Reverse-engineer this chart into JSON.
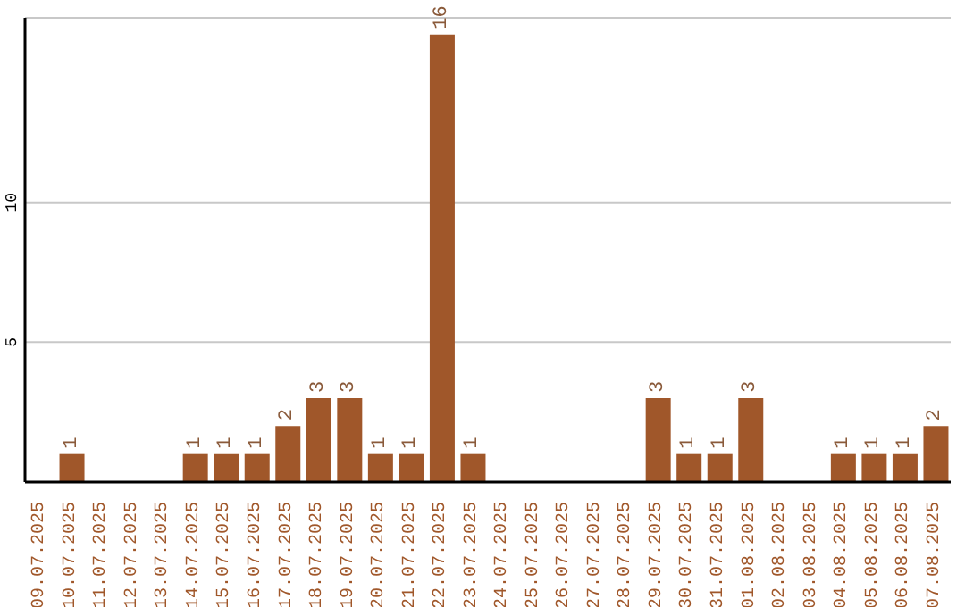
{
  "chart_data": {
    "type": "bar",
    "categories": [
      "09.07.2025",
      "10.07.2025",
      "11.07.2025",
      "12.07.2025",
      "13.07.2025",
      "14.07.2025",
      "15.07.2025",
      "16.07.2025",
      "17.07.2025",
      "18.07.2025",
      "19.07.2025",
      "20.07.2025",
      "21.07.2025",
      "22.07.2025",
      "23.07.2025",
      "24.07.2025",
      "25.07.2025",
      "26.07.2025",
      "27.07.2025",
      "28.07.2025",
      "29.07.2025",
      "30.07.2025",
      "31.07.2025",
      "01.08.2025",
      "02.08.2025",
      "03.08.2025",
      "04.08.2025",
      "05.08.2025",
      "06.08.2025",
      "07.08.2025"
    ],
    "values": [
      0,
      1,
      0,
      0,
      0,
      1,
      1,
      1,
      2,
      3,
      3,
      1,
      1,
      16,
      1,
      0,
      0,
      0,
      0,
      0,
      3,
      1,
      1,
      3,
      0,
      0,
      1,
      1,
      1,
      2
    ],
    "value_labels": [
      null,
      "1",
      null,
      null,
      null,
      "1",
      "1",
      "1",
      "2",
      "3",
      "3",
      "1",
      "1",
      "16",
      "1",
      null,
      null,
      null,
      null,
      null,
      "3",
      "1",
      "1",
      "3",
      null,
      null,
      "1",
      "1",
      "1",
      "2"
    ],
    "color": "#a0572a",
    "ylim": [
      0,
      16.6
    ],
    "yticks": [
      5,
      10
    ],
    "grid": "y"
  }
}
